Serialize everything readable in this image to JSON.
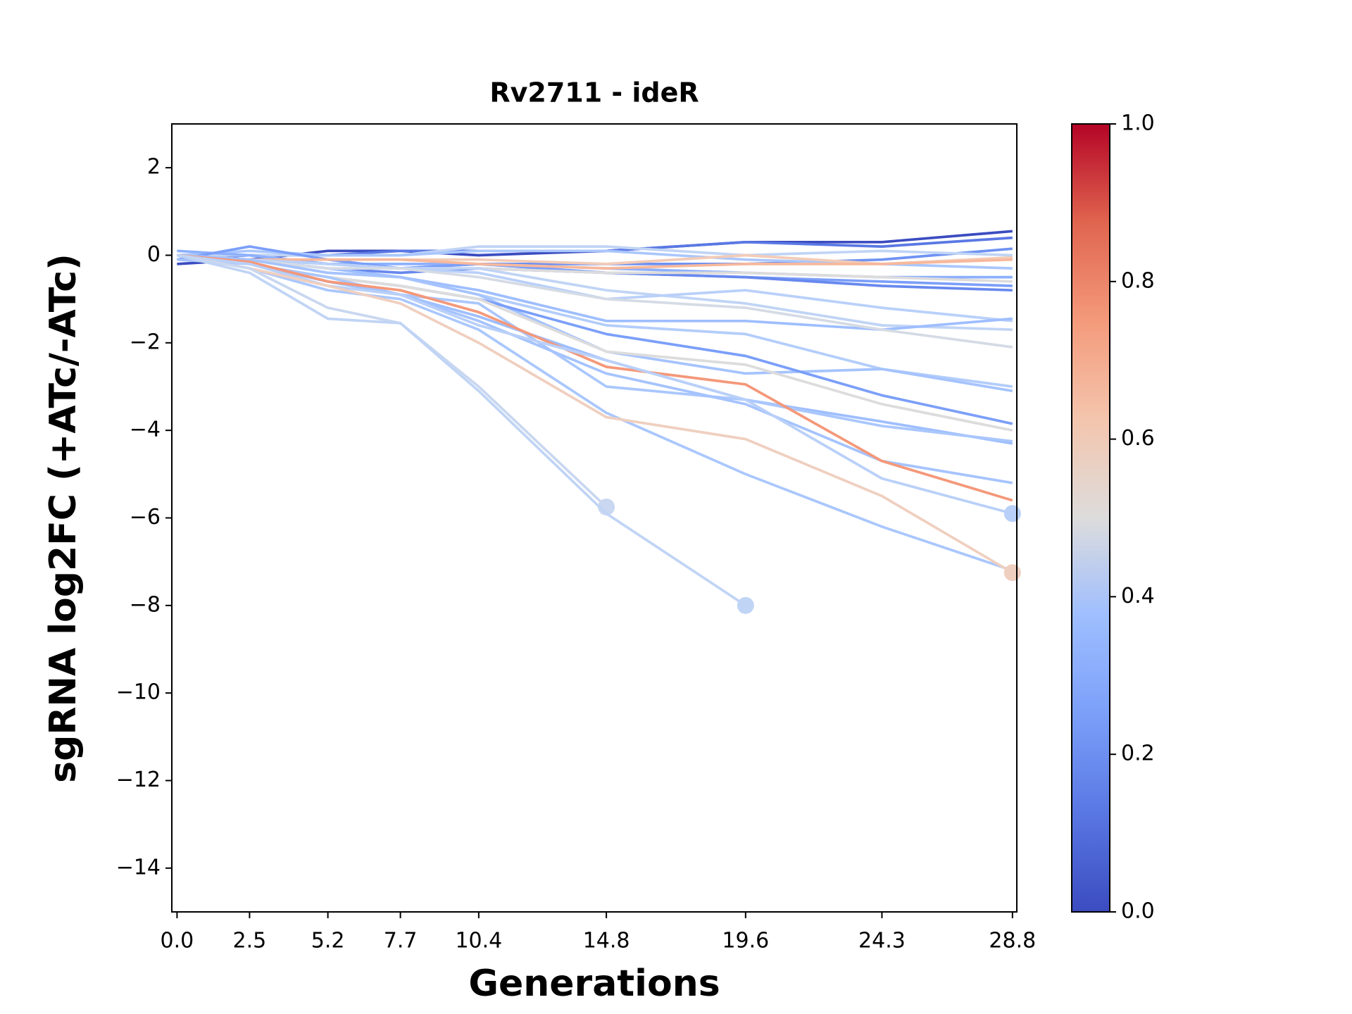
{
  "chart_data": {
    "type": "line",
    "title": "Rv2711 - ideR",
    "x_label": "Generations",
    "y_label": "sgRNA log2FC (+ATc/-ATc)",
    "x": [
      0,
      2.5,
      5.2,
      7.7,
      10.4,
      14.8,
      19.6,
      24.3,
      28.8
    ],
    "xlim": [
      -0.18,
      28.95
    ],
    "xticks": [
      {
        "value": 0,
        "label": "0.0"
      },
      2.5,
      5.2,
      7.7,
      10.4,
      14.8,
      19.6,
      24.3,
      28.8
    ],
    "ylim": [
      -15,
      3
    ],
    "yticks": [
      {
        "value": -14,
        "label": "−14"
      },
      {
        "value": -12,
        "label": "−12"
      },
      {
        "value": -10,
        "label": "−10"
      },
      {
        "value": -8,
        "label": "−8"
      },
      {
        "value": -6,
        "label": "−6"
      },
      {
        "value": -4,
        "label": "−4"
      },
      {
        "value": -2,
        "label": "−2"
      },
      0,
      2
    ],
    "colorbar": {
      "lim": [
        0,
        1
      ],
      "ticks": [
        {
          "value": 0,
          "label": "0.0"
        },
        0.2,
        0.4,
        0.6,
        0.8,
        {
          "value": 1,
          "label": "1.0"
        }
      ]
    },
    "series": [
      {
        "color": "#3b4cc0",
        "values": [
          -0.2,
          -0.1,
          0.1,
          0.1,
          0,
          0.1,
          0.3,
          0.3,
          0.55
        ]
      },
      {
        "color": "#5a78e4",
        "values": [
          -0.1,
          0,
          0,
          0.1,
          0.1,
          0.1,
          0.3,
          0.2,
          0.4
        ]
      },
      {
        "color": "#6f92f3",
        "values": [
          0,
          0,
          -0.2,
          -0.3,
          -0.2,
          -0.2,
          -0.2,
          -0.1,
          0.15
        ]
      },
      {
        "color": "#c0d4f5",
        "values": [
          0,
          0,
          0,
          0,
          0.2,
          0.2,
          0,
          0.1,
          0
        ]
      },
      {
        "color": "#aac7fd",
        "values": [
          0,
          0.1,
          0,
          0,
          0.1,
          0.1,
          -0.1,
          -0.2,
          -0.3
        ]
      },
      {
        "color": "#8db0fe",
        "values": [
          0.1,
          0,
          -0.2,
          -0.2,
          -0.2,
          -0.3,
          -0.4,
          -0.5,
          -0.5
        ]
      },
      {
        "color": "#7b9ff9",
        "values": [
          -0.1,
          0.2,
          -0.1,
          -0.3,
          -0.2,
          -0.4,
          -0.5,
          -0.6,
          -0.7
        ]
      },
      {
        "color": "#6788ee",
        "values": [
          0,
          -0.1,
          -0.3,
          -0.4,
          -0.3,
          -0.4,
          -0.5,
          -0.7,
          -0.8
        ]
      },
      {
        "color": "#dddcdc",
        "values": [
          0,
          -0.1,
          -0.2,
          -0.3,
          -0.3,
          -0.4,
          -0.4,
          -0.5,
          -0.6
        ]
      },
      {
        "color": "#f2cbb7",
        "values": [
          0,
          -0.1,
          -0.1,
          -0.1,
          -0.1,
          -0.2,
          0,
          -0.2,
          -0.05
        ]
      },
      {
        "color": "#f7b89c",
        "values": [
          0,
          -0.1,
          -0.1,
          -0.1,
          -0.2,
          -0.3,
          -0.2,
          -0.2,
          -0.1
        ]
      },
      {
        "color": "#c0d4f5",
        "values": [
          0,
          -0.1,
          -0.2,
          -0.3,
          -0.3,
          -0.8,
          -1.1,
          -1.6,
          -1.7
        ]
      },
      {
        "color": "#b9d0f9",
        "values": [
          0,
          -0.1,
          -0.2,
          -0.3,
          -0.4,
          -1.0,
          -0.8,
          -1.2,
          -1.5
        ]
      },
      {
        "color": "#9ebeff",
        "values": [
          0,
          -0.1,
          -0.3,
          -0.5,
          -0.8,
          -1.5,
          -1.5,
          -1.7,
          -1.45
        ]
      },
      {
        "color": "#d5dbe5",
        "values": [
          0,
          -0.1,
          -0.3,
          -0.3,
          -0.5,
          -1.0,
          -1.2,
          -1.7,
          -2.1
        ]
      },
      {
        "color": "#b3cdfb",
        "values": [
          0,
          -0.1,
          -0.4,
          -0.5,
          -0.9,
          -1.6,
          -1.8,
          -2.6,
          -3.0
        ]
      },
      {
        "color": "#a5c3fe",
        "values": [
          0,
          -0.1,
          -0.4,
          -0.5,
          -0.9,
          -2.2,
          -2.7,
          -2.6,
          -3.1
        ]
      },
      {
        "color": "#7b9ff9",
        "values": [
          0,
          -0.2,
          -0.5,
          -0.7,
          -1.0,
          -1.8,
          -2.3,
          -3.2,
          -3.85
        ]
      },
      {
        "color": "#dddcdc",
        "values": [
          0,
          -0.2,
          -0.5,
          -0.7,
          -1.0,
          -2.2,
          -2.5,
          -3.4,
          -4.0
        ]
      },
      {
        "color": "#9ebeff",
        "values": [
          0,
          -0.2,
          -0.6,
          -0.9,
          -1.4,
          -2.4,
          -3.3,
          -3.8,
          -4.3
        ]
      },
      {
        "color": "#aac7fd",
        "values": [
          0,
          -0.2,
          -0.5,
          -0.9,
          -1.1,
          -3.0,
          -3.3,
          -3.9,
          -4.25
        ]
      },
      {
        "color": "#a5c3fe",
        "values": [
          -0.1,
          -0.2,
          -0.6,
          -0.9,
          -1.5,
          -2.7,
          -3.4,
          -4.7,
          -5.2
        ]
      },
      {
        "color": "#f4987a",
        "values": [
          0,
          -0.15,
          -0.6,
          -0.8,
          -1.3,
          -2.55,
          -2.95,
          -4.7,
          -5.6
        ]
      },
      {
        "color": "#b9d0f9",
        "end_marker": true,
        "values": [
          0,
          -0.2,
          -0.7,
          -0.9,
          -1.6,
          -2.4,
          -3.3,
          -5.1,
          -5.9
        ]
      },
      {
        "color": "#aac7fd",
        "values": [
          0,
          -0.3,
          -0.8,
          -1.0,
          -1.7,
          -3.6,
          -5.0,
          -6.2,
          -7.2
        ]
      },
      {
        "color": "#efcfbf",
        "end_marker": true,
        "values": [
          0,
          -0.3,
          -0.7,
          -1.1,
          -2.0,
          -3.7,
          -4.2,
          -5.5,
          -7.25
        ]
      },
      {
        "color": "#c9d7f0",
        "end_marker": true,
        "values": [
          0,
          -0.3,
          -1.2,
          -1.55,
          -3.0,
          -5.75,
          null,
          null,
          null
        ]
      },
      {
        "color": "#c0d4f5",
        "end_marker": true,
        "values": [
          0,
          -0.4,
          -1.45,
          -1.55,
          -3.1,
          -5.9,
          -8.0,
          null,
          null
        ]
      }
    ]
  }
}
